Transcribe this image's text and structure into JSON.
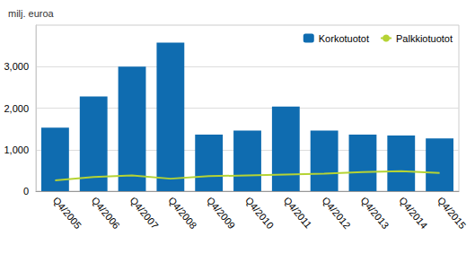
{
  "chart_data": {
    "type": "bar",
    "subtitle": "milj. euroa",
    "categories": [
      "Q4/2005",
      "Q4/2006",
      "Q4/2007",
      "Q4/2008",
      "Q4/2009",
      "Q4/2010",
      "Q4/2011",
      "Q4/2012",
      "Q4/2013",
      "Q4/2014",
      "Q4/2015"
    ],
    "series": [
      {
        "name": "Korkotuotot",
        "type": "bar",
        "color": "#0f6cb0",
        "values": [
          1530,
          2280,
          3000,
          3580,
          1360,
          1460,
          2040,
          1460,
          1360,
          1340,
          1270
        ]
      },
      {
        "name": "Palkkiotuotot",
        "type": "line",
        "color": "#b5d334",
        "values": [
          260,
          340,
          380,
          300,
          360,
          380,
          400,
          420,
          460,
          480,
          440
        ]
      }
    ],
    "ylim": [
      0,
      4000
    ],
    "yticks": [
      0,
      1000,
      2000,
      3000
    ],
    "grid": true,
    "legend": "upper right"
  }
}
